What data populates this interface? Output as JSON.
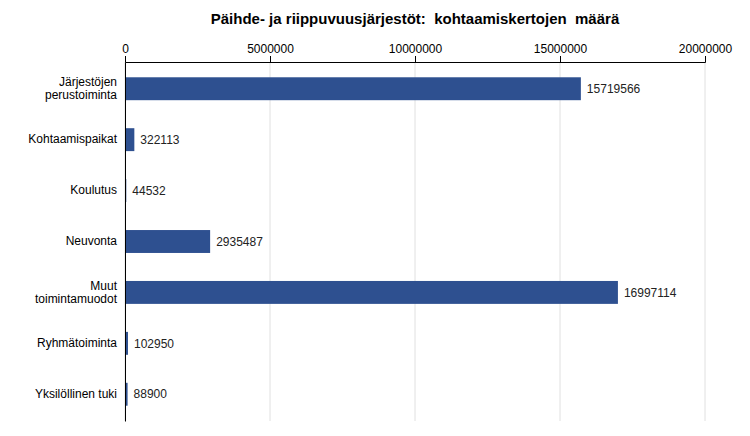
{
  "chart_data": {
    "type": "bar",
    "orientation": "horizontal",
    "title": "Päihde- ja riippuvuusjärjestöt:  kohtaamiskertojen  määrä",
    "categories": [
      "Järjestöjen\nperustoiminta",
      "Kohtaamispaikat",
      "Koulutus",
      "Neuvonta",
      "Muut\ntoimintamuodot",
      "Ryhmätoiminta",
      "Yksilöllinen tuki"
    ],
    "values": [
      15719566,
      322113,
      44532,
      2935487,
      16997114,
      102950,
      88900
    ],
    "color": "#2E5090",
    "xlim": [
      0,
      20000000
    ],
    "xticks": [
      0,
      5000000,
      10000000,
      15000000,
      20000000
    ],
    "grid": true,
    "data_labels": true
  }
}
